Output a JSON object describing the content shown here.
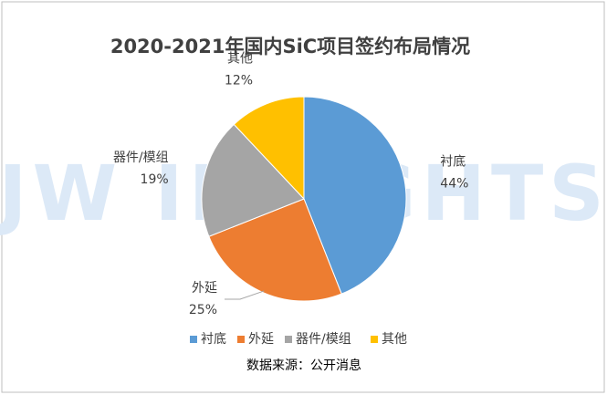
{
  "chart_data": {
    "type": "pie",
    "title": "2020-2021年国内SiC项目签约布局情况",
    "categories": [
      "衬底",
      "外延",
      "器件/模组",
      "其他"
    ],
    "values": [
      44,
      25,
      19,
      12
    ],
    "value_labels": [
      "44%",
      "25%",
      "19%",
      "12%"
    ],
    "colors": [
      "#5b9bd5",
      "#ed7d31",
      "#a5a5a5",
      "#ffc000"
    ],
    "legend": "bottom",
    "watermark": "JW INSIGHTS",
    "source": "数据来源：公开消息"
  }
}
